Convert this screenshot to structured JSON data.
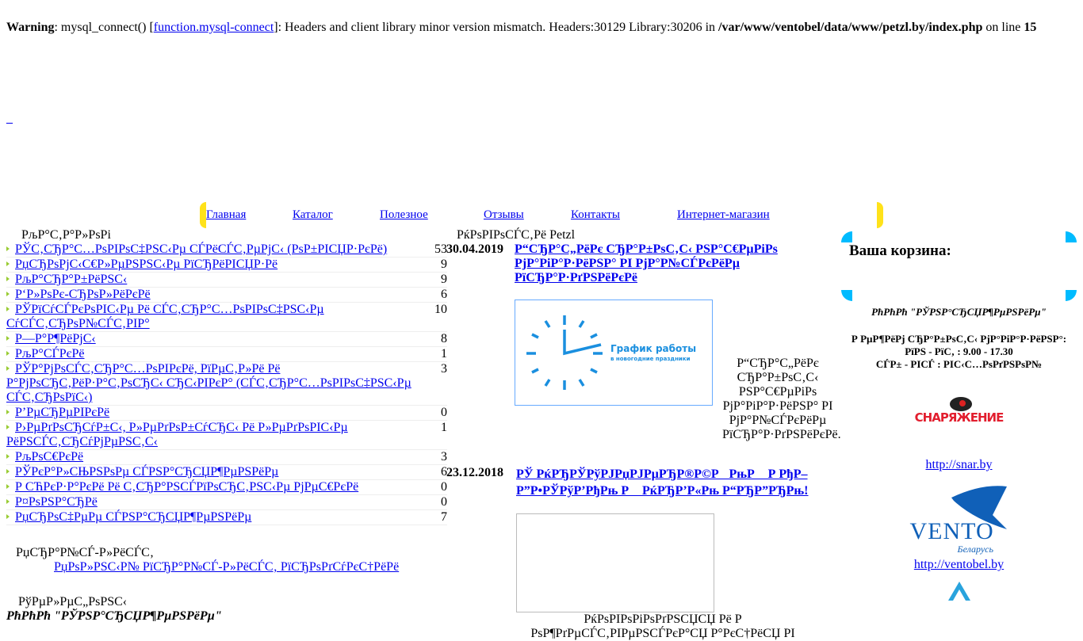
{
  "warning": {
    "label": "Warning",
    "pre": ": mysql_connect() [",
    "link": "function.mysql-connect",
    "post": "]: Headers and client library minor version mismatch. Headers:30129 Library:30206 in ",
    "path": "/var/www/ventobel/data/www/petzl.by/index.php",
    "online": " on line ",
    "line": "15"
  },
  "underscore_link": "_",
  "nav": [
    "Главная",
    "Каталог",
    "Полезное",
    "Отзывы",
    "Контакты",
    "Интернет-магазин"
  ],
  "catalog": {
    "title": "РљР°С‚Р°Р»РѕРі",
    "items": [
      {
        "label": "РЎС‚СЂР°С…РѕРІРѕС‡РЅС‹Рµ СЃРёСЃС‚РµРјС‹ (РѕР±РІСЏР·РєРё)",
        "count": "53"
      },
      {
        "label": "РџСЂРѕРјС‹С€Р»РµРЅРЅС‹Рµ РїСЂРёРІСЏР·Рё",
        "count": "9"
      },
      {
        "label": "РљР°СЂР°Р±РёРЅС‹",
        "count": "9"
      },
      {
        "label": "Р‘Р»РѕРє-СЂРѕР»РёРєРё",
        "count": "6"
      },
      {
        "label": "РЎРїСѓСЃРєРѕРІС‹Рµ Рё СЃС‚СЂР°С…РѕРІРѕС‡РЅС‹Рµ СѓСЃС‚СЂРѕР№СЃС‚РІР°",
        "count": "10"
      },
      {
        "label": "Р—Р°Р¶РёРјС‹",
        "count": "8"
      },
      {
        "label": "РљР°СЃРєРё",
        "count": "1"
      },
      {
        "label": "РЎР°РјРѕСЃС‚СЂР°С…РѕРІРєРё, РїРµС‚Р»Рё Рё Р°РјРѕСЂС‚РёР·Р°С‚РѕСЂС‹ СЂС‹РІРєР° (СЃС‚СЂР°С…РѕРІРѕС‡РЅС‹Рµ СЃС‚СЂРѕРїС‹)",
        "count": "3"
      },
      {
        "label": "Р’РµСЂРµРІРєРё",
        "count": "0"
      },
      {
        "label": "Р›РµРґРѕСЂСѓР±С‹, Р»РµРґРѕР±СѓСЂС‹ Рё Р»РµРґРѕРІС‹Рµ РёРЅСЃС‚СЂСѓРјРµРЅС‚С‹",
        "count": "1"
      },
      {
        "label": "РљРѕС€РєРё",
        "count": "3"
      },
      {
        "label": "РЎРєР°Р»СЊРЅРѕРµ СЃРЅР°СЂСЏР¶РµРЅРёРµ",
        "count": "6"
      },
      {
        "label": "Р СЋРєР·Р°РєРё Рё С‚СЂР°РЅСЃРїРѕСЂС‚РЅС‹Рµ РјРµС€РєРё",
        "count": "0"
      },
      {
        "label": "Р¤РѕРЅР°СЂРё",
        "count": "0"
      },
      {
        "label": "РџСЂРѕС‡РµРµ СЃРЅР°СЂСЏР¶РµРЅРёРµ",
        "count": "7"
      }
    ]
  },
  "pricelist": {
    "title": "РџСЂР°Р№СЃ-Р»РёСЃС‚",
    "link": "РџРѕР»РЅС‹Р№ РїСЂР°Р№СЃ-Р»РёСЃС‚ РїСЂРѕРґСѓРєС†РёРё"
  },
  "phones": {
    "title": "РўРµР»РµС„РѕРЅС‹",
    "company": "РћРћРћ \"РЎРЅР°СЂСЏР¶РµРЅРёРµ\""
  },
  "news": {
    "title": "РќРѕРІРѕСЃС‚Рё Petzl",
    "items": [
      {
        "date": "30.04.2019",
        "title": "Р“СЂР°С„РёРє СЂР°Р±РѕС‚С‹ РЅР°С€РµРіРѕ РјР°РіР°Р·РёРЅР° РІ РјР°Р№СЃРєРёРµ РїСЂР°Р·РґРЅРёРєРё",
        "image_text": "График работы",
        "image_sub": "в новогодние праздники",
        "text": "Р“СЂР°С„РёРє СЂР°Р±РѕС‚С‹ РЅР°С€РµРіРѕ РјР°РіР°Р·РёРЅР° РІ РјР°Р№СЃРєРёРµ РїСЂР°Р·РґРЅРёРєРё."
      },
      {
        "date": "23.12.2018",
        "title": "РЎ РќРЂРЎРўРЈРџРЈРµРЂР®Р©РРњР Р РђР–Р”Р•РЎРўР’РђРњ Р РќРЂР’Р«Рњ Р“РЂР”РЂРњ!",
        "text": "РќРѕРІРѕРіРѕРґРЅСЏСЏ Рё Р РѕР¶РґРµСЃС‚РІРµРЅСЃРєР°СЏ Р°РєС†РёСЏ РІ"
      }
    ]
  },
  "cart": {
    "title": "Ваша корзина:"
  },
  "company": {
    "name": "РћРћРћ \"РЎРЅР°СЂСЏР¶РµРЅРёРµ\"",
    "hours_title": "Р РµР¶РёРј СЂР°Р±РѕС‚С‹ РјР°РіР°Р·РёРЅР°:",
    "hours_weekdays": "РїРЅ - РїС‚ : 9.00 - 17.30",
    "hours_weekend": "СЃР± - РІСЃ : РІС‹С…РѕРґРЅРѕР№"
  },
  "partners": [
    {
      "logo_text": "СНАРЯЖЕНИЕ",
      "url": "http://snar.by"
    },
    {
      "logo_text": "VENTO",
      "logo_sub": "Беларусь",
      "url": "http://ventobel.by"
    }
  ],
  "colors": {
    "nav_caps": "#ffe21a",
    "cart_corners": "#00bbff",
    "link": "#0000ee",
    "bullet": "#99cc33"
  }
}
